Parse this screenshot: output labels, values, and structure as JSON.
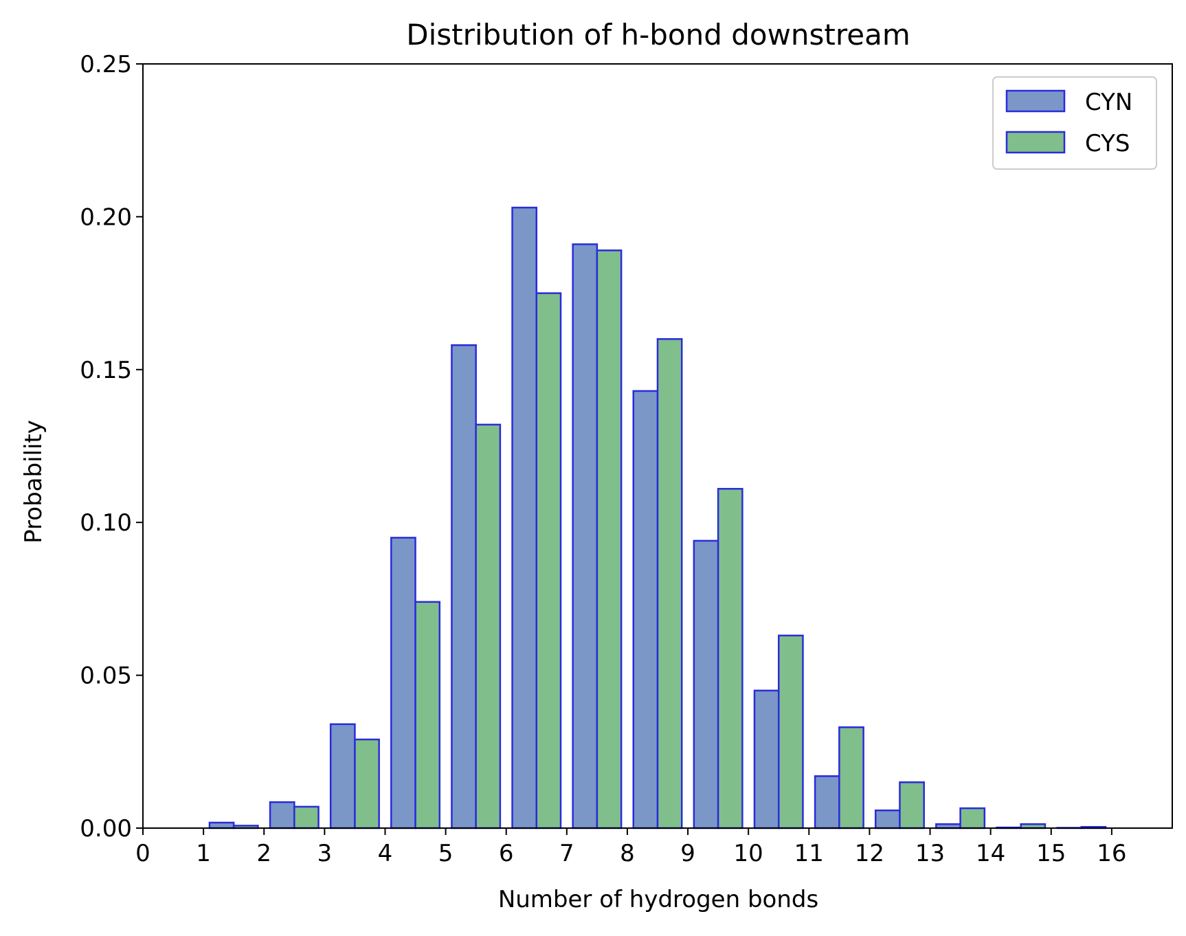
{
  "chart_data": {
    "type": "bar",
    "title": "Distribution of h-bond downstream",
    "xlabel": "Number of hydrogen bonds",
    "ylabel": "Probability",
    "xlim": [
      0,
      17
    ],
    "ylim": [
      0,
      0.25
    ],
    "x_ticks": [
      "0",
      "1",
      "2",
      "3",
      "4",
      "5",
      "6",
      "7",
      "8",
      "9",
      "10",
      "11",
      "12",
      "13",
      "14",
      "15",
      "16"
    ],
    "y_ticks": [
      "0.00",
      "0.05",
      "0.10",
      "0.15",
      "0.20",
      "0.25"
    ],
    "y_tick_values": [
      0,
      0.05,
      0.1,
      0.15,
      0.2,
      0.25
    ],
    "categories": [
      0,
      1,
      2,
      3,
      4,
      5,
      6,
      7,
      8,
      9,
      10,
      11,
      12,
      13,
      14,
      15
    ],
    "series": [
      {
        "name": "CYN",
        "color": "#7a97c7",
        "edge_color": "#2b2bdc",
        "values": [
          0.0,
          0.0018,
          0.0085,
          0.034,
          0.095,
          0.158,
          0.203,
          0.191,
          0.143,
          0.094,
          0.045,
          0.017,
          0.0058,
          0.0013,
          0.0002,
          0.0001
        ]
      },
      {
        "name": "CYS",
        "color": "#80be8b",
        "edge_color": "#2b2bdc",
        "values": [
          0.0,
          0.0008,
          0.007,
          0.029,
          0.074,
          0.132,
          0.175,
          0.189,
          0.16,
          0.111,
          0.063,
          0.033,
          0.015,
          0.0065,
          0.0013,
          0.0004
        ]
      }
    ],
    "legend_position": "top-right",
    "grid": false
  }
}
